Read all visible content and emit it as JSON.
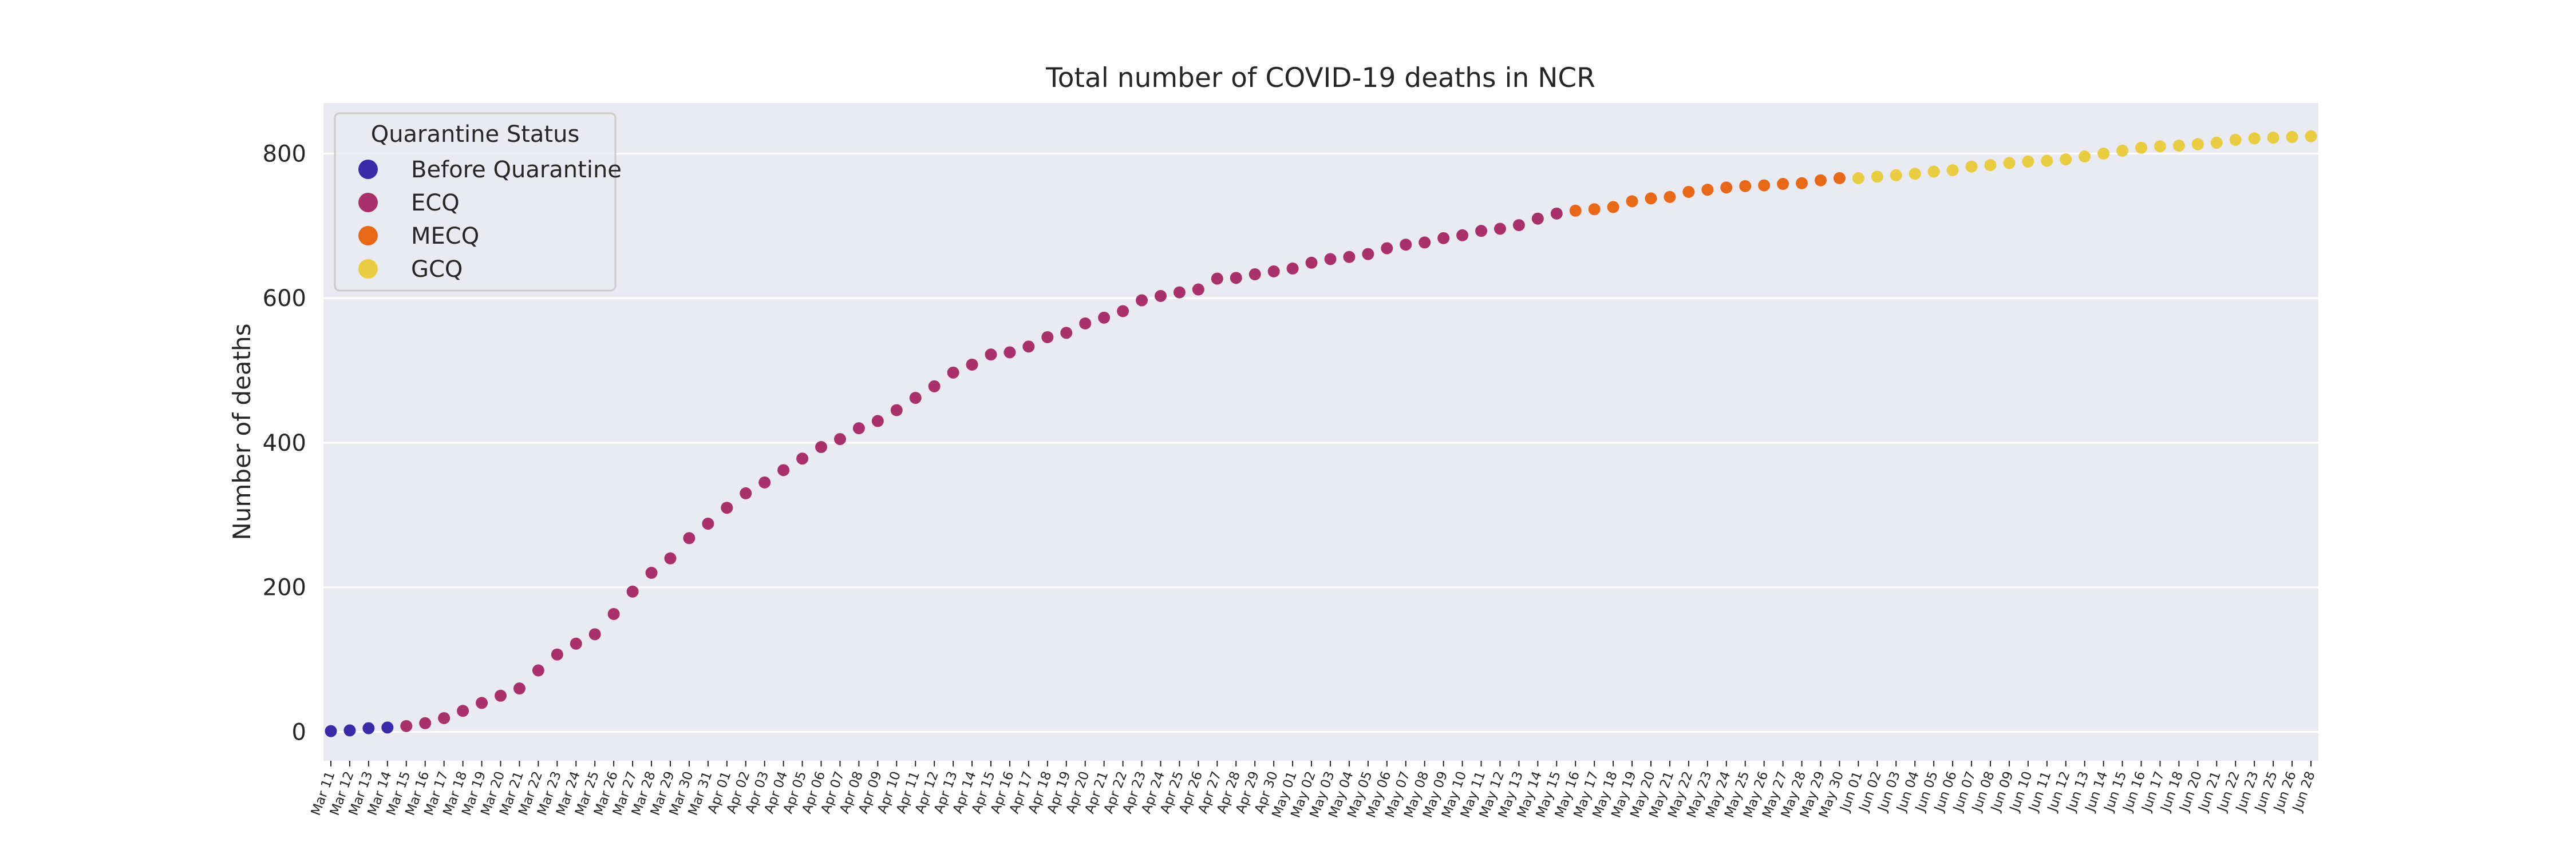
{
  "chart_data": {
    "type": "scatter",
    "title": "Total number of COVID-19 deaths in NCR",
    "xlabel": "",
    "ylabel": "Number of deaths",
    "ylim": [
      -40,
      870
    ],
    "yticks": [
      0,
      200,
      400,
      600,
      800
    ],
    "grid": true,
    "legend": {
      "title": "Quarantine Status",
      "placement": "upper-left",
      "entries": [
        "Before Quarantine",
        "ECQ",
        "MECQ",
        "GCQ"
      ]
    },
    "colors": {
      "Before Quarantine": "#3a2aa8",
      "ECQ": "#a8306b",
      "MECQ": "#e8681a",
      "GCQ": "#e8cc42",
      "plot_background": "#eaeaf2",
      "gridline": "#ffffff"
    },
    "x": [
      "Mar 11",
      "Mar 12",
      "Mar 13",
      "Mar 14",
      "Mar 15",
      "Mar 16",
      "Mar 17",
      "Mar 18",
      "Mar 19",
      "Mar 20",
      "Mar 21",
      "Mar 22",
      "Mar 23",
      "Mar 24",
      "Mar 25",
      "Mar 26",
      "Mar 27",
      "Mar 28",
      "Mar 29",
      "Mar 30",
      "Mar 31",
      "Apr 01",
      "Apr 02",
      "Apr 03",
      "Apr 04",
      "Apr 05",
      "Apr 06",
      "Apr 07",
      "Apr 08",
      "Apr 09",
      "Apr 10",
      "Apr 11",
      "Apr 12",
      "Apr 13",
      "Apr 14",
      "Apr 15",
      "Apr 16",
      "Apr 17",
      "Apr 18",
      "Apr 19",
      "Apr 20",
      "Apr 21",
      "Apr 22",
      "Apr 23",
      "Apr 24",
      "Apr 25",
      "Apr 26",
      "Apr 27",
      "Apr 28",
      "Apr 29",
      "Apr 30",
      "May 01",
      "May 02",
      "May 03",
      "May 04",
      "May 05",
      "May 06",
      "May 07",
      "May 08",
      "May 09",
      "May 10",
      "May 11",
      "May 12",
      "May 13",
      "May 14",
      "May 15",
      "May 16",
      "May 17",
      "May 18",
      "May 19",
      "May 20",
      "May 21",
      "May 22",
      "May 23",
      "May 24",
      "May 25",
      "May 26",
      "May 27",
      "May 28",
      "May 29",
      "May 30",
      "Jun 01",
      "Jun 02",
      "Jun 03",
      "Jun 04",
      "Jun 05",
      "Jun 06",
      "Jun 07",
      "Jun 08",
      "Jun 09",
      "Jun 10",
      "Jun 11",
      "Jun 12",
      "Jun 13",
      "Jun 14",
      "Jun 15",
      "Jun 16",
      "Jun 17",
      "Jun 18",
      "Jun 20",
      "Jun 21",
      "Jun 22",
      "Jun 23",
      "Jun 25",
      "Jun 26",
      "Jun 28"
    ],
    "y": [
      1,
      2,
      5,
      6,
      8,
      12,
      19,
      29,
      40,
      50,
      60,
      85,
      107,
      122,
      135,
      163,
      194,
      220,
      240,
      268,
      288,
      310,
      330,
      345,
      362,
      378,
      394,
      405,
      420,
      430,
      445,
      462,
      478,
      497,
      508,
      522,
      525,
      533,
      546,
      552,
      565,
      573,
      582,
      597,
      603,
      608,
      612,
      627,
      628,
      633,
      637,
      641,
      649,
      654,
      657,
      661,
      669,
      674,
      677,
      683,
      687,
      693,
      696,
      701,
      710,
      717,
      721,
      723,
      726,
      734,
      738,
      740,
      747,
      750,
      753,
      755,
      756,
      758,
      759,
      763,
      766,
      766,
      768,
      770,
      772,
      775,
      777,
      782,
      784,
      787,
      789,
      790,
      792,
      796,
      800,
      804,
      808,
      810,
      811,
      813,
      815,
      819,
      821,
      822,
      823,
      824
    ],
    "status": [
      "Before Quarantine",
      "Before Quarantine",
      "Before Quarantine",
      "Before Quarantine",
      "ECQ",
      "ECQ",
      "ECQ",
      "ECQ",
      "ECQ",
      "ECQ",
      "ECQ",
      "ECQ",
      "ECQ",
      "ECQ",
      "ECQ",
      "ECQ",
      "ECQ",
      "ECQ",
      "ECQ",
      "ECQ",
      "ECQ",
      "ECQ",
      "ECQ",
      "ECQ",
      "ECQ",
      "ECQ",
      "ECQ",
      "ECQ",
      "ECQ",
      "ECQ",
      "ECQ",
      "ECQ",
      "ECQ",
      "ECQ",
      "ECQ",
      "ECQ",
      "ECQ",
      "ECQ",
      "ECQ",
      "ECQ",
      "ECQ",
      "ECQ",
      "ECQ",
      "ECQ",
      "ECQ",
      "ECQ",
      "ECQ",
      "ECQ",
      "ECQ",
      "ECQ",
      "ECQ",
      "ECQ",
      "ECQ",
      "ECQ",
      "ECQ",
      "ECQ",
      "ECQ",
      "ECQ",
      "ECQ",
      "ECQ",
      "ECQ",
      "ECQ",
      "ECQ",
      "ECQ",
      "ECQ",
      "ECQ",
      "MECQ",
      "MECQ",
      "MECQ",
      "MECQ",
      "MECQ",
      "MECQ",
      "MECQ",
      "MECQ",
      "MECQ",
      "MECQ",
      "MECQ",
      "MECQ",
      "MECQ",
      "MECQ",
      "MECQ",
      "GCQ",
      "GCQ",
      "GCQ",
      "GCQ",
      "GCQ",
      "GCQ",
      "GCQ",
      "GCQ",
      "GCQ",
      "GCQ",
      "GCQ",
      "GCQ",
      "GCQ",
      "GCQ",
      "GCQ",
      "GCQ",
      "GCQ",
      "GCQ",
      "GCQ",
      "GCQ",
      "GCQ",
      "GCQ",
      "GCQ",
      "GCQ",
      "GCQ"
    ]
  }
}
